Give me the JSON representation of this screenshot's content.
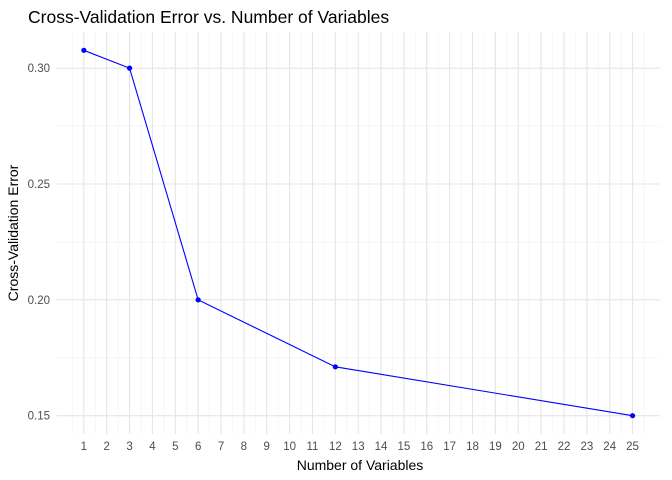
{
  "chart_data": {
    "type": "line",
    "title": "Cross-Validation Error vs. Number of Variables",
    "xlabel": "Number of Variables",
    "ylabel": "Cross-Validation Error",
    "x": [
      1,
      3,
      6,
      12,
      25
    ],
    "y": [
      0.3077,
      0.3,
      0.2,
      0.1711,
      0.15
    ],
    "x_ticks": [
      "1",
      "2",
      "3",
      "4",
      "5",
      "6",
      "7",
      "8",
      "9",
      "10",
      "11",
      "12",
      "13",
      "14",
      "15",
      "16",
      "17",
      "18",
      "19",
      "20",
      "21",
      "22",
      "23",
      "24",
      "25"
    ],
    "y_ticks": [
      "0.15",
      "0.20",
      "0.25",
      "0.30"
    ],
    "xlim": [
      -0.2,
      26.2
    ],
    "ylim": [
      0.1421,
      0.3156
    ],
    "grid": true,
    "line_color": "#0000ff",
    "point_color": "#0000ff"
  }
}
